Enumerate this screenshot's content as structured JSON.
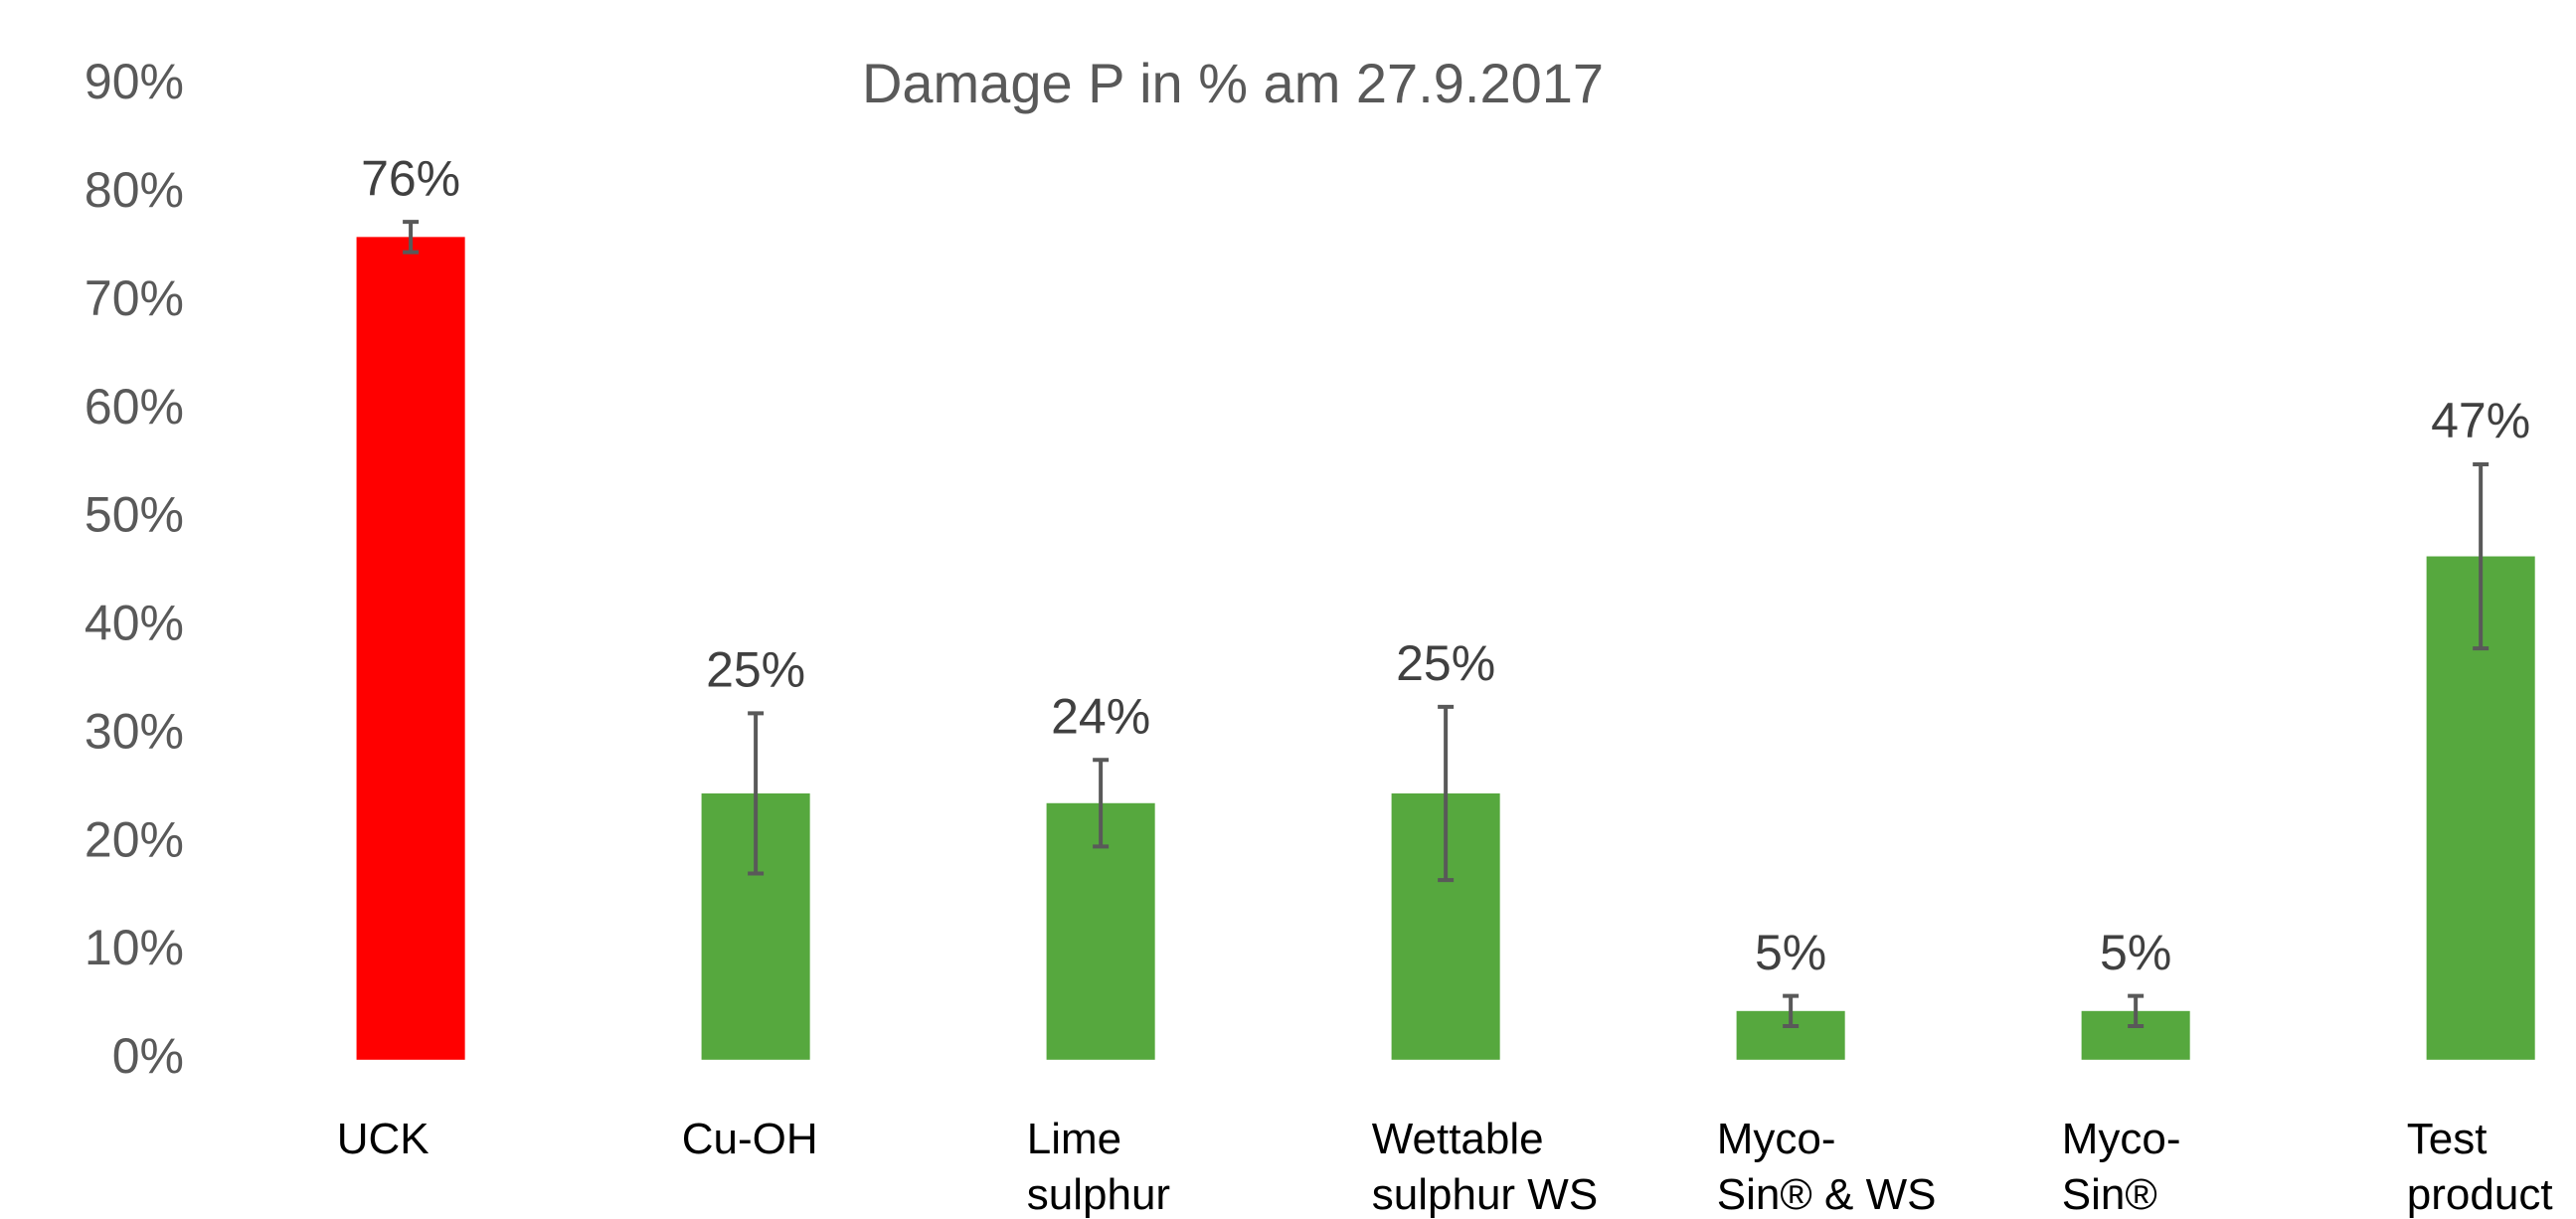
{
  "chart_data": {
    "type": "bar",
    "title": "Damage P in % am 27.9.2017",
    "categories": [
      [
        "UCK"
      ],
      [
        "Cu-OH"
      ],
      [
        "Lime",
        "sulphur"
      ],
      [
        "Wettable",
        "sulphur WS"
      ],
      [
        "Myco-",
        "Sin® & WS"
      ],
      [
        "Myco-",
        "Sin®"
      ],
      [
        "Test",
        "product"
      ]
    ],
    "values": [
      76,
      24.6,
      23.7,
      24.6,
      4.5,
      4.5,
      46.5
    ],
    "value_labels": [
      "76%",
      "25%",
      "24%",
      "25%",
      "5%",
      "5%",
      "47%"
    ],
    "errors": [
      1.4,
      7.4,
      4,
      8,
      1.4,
      1.4,
      8.5
    ],
    "colors": [
      "#ff0000",
      "#56a83e",
      "#56a83e",
      "#56a83e",
      "#56a83e",
      "#56a83e",
      "#56a83e"
    ],
    "ylim": [
      0,
      90
    ],
    "yticks": [
      {
        "value": 0,
        "label": "0%"
      },
      {
        "value": 10,
        "label": "10%"
      },
      {
        "value": 20,
        "label": "20%"
      },
      {
        "value": 30,
        "label": "30%"
      },
      {
        "value": 40,
        "label": "40%"
      },
      {
        "value": 50,
        "label": "50%"
      },
      {
        "value": 60,
        "label": "60%"
      },
      {
        "value": 70,
        "label": "70%"
      },
      {
        "value": 80,
        "label": "80%"
      },
      {
        "value": 90,
        "label": "90%"
      }
    ],
    "grid": false
  }
}
